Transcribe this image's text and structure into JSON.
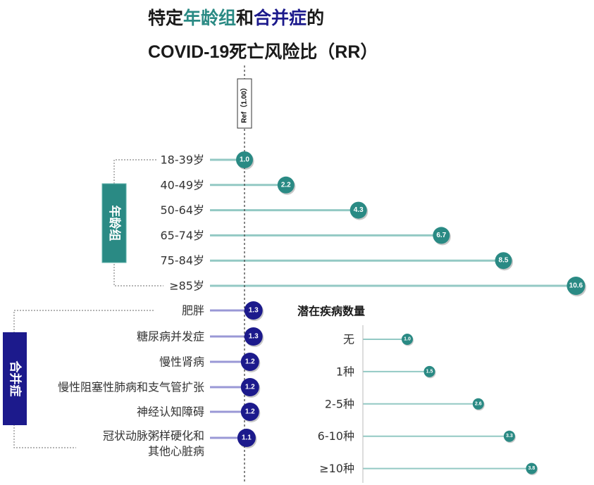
{
  "title": {
    "line1_parts": [
      "特定",
      "年龄组",
      "和",
      "合并症",
      "的"
    ],
    "line2": "COVID-19死亡风险比（RR）"
  },
  "colors": {
    "age": "#2a8a84",
    "age_line": "#93c9c4",
    "comorbidity": "#1c1a8c",
    "comorbidity_line": "#9a98d6"
  },
  "chart_data": [
    {
      "type": "bar",
      "group_label": "年龄组",
      "reference_label": "Ref（1.00）",
      "categories": [
        "18-39岁",
        "40-49岁",
        "50-64岁",
        "65-74岁",
        "75-84岁",
        "≥85岁"
      ],
      "values": [
        1.0,
        2.2,
        4.3,
        6.7,
        8.5,
        10.6
      ],
      "value_labels": [
        "1.0",
        "2.2",
        "4.3",
        "6.7",
        "8.5",
        "10.6"
      ]
    },
    {
      "type": "bar",
      "group_label": "合并症",
      "categories": [
        "肥胖",
        "糖尿病并发症",
        "慢性肾病",
        "慢性阻塞性肺病和支气管扩张",
        "神经认知障碍",
        "冠状动脉粥样硬化和|其他心脏病"
      ],
      "values": [
        1.3,
        1.3,
        1.2,
        1.2,
        1.2,
        1.1
      ],
      "value_labels": [
        "1.3",
        "1.3",
        "1.2",
        "1.2",
        "1.2",
        "1.1"
      ]
    },
    {
      "type": "bar",
      "title": "潜在疾病数量",
      "categories": [
        "无",
        "1种",
        "2-5种",
        "6-10种",
        "≥10种"
      ],
      "values": [
        1.0,
        1.5,
        2.6,
        3.3,
        3.8
      ],
      "value_labels": [
        "1.0",
        "1.5",
        "2.6",
        "3.3",
        "3.8"
      ]
    }
  ]
}
